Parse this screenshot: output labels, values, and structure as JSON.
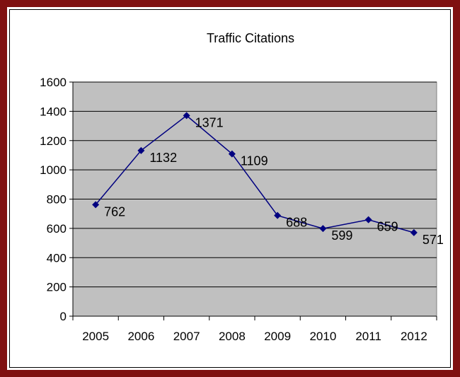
{
  "chart_data": {
    "type": "line",
    "title": "Traffic Citations",
    "categories": [
      "2005",
      "2006",
      "2007",
      "2008",
      "2009",
      "2010",
      "2011",
      "2012"
    ],
    "series": [
      {
        "values": [
          762,
          1132,
          1371,
          1109,
          688,
          599,
          659,
          571
        ]
      }
    ],
    "ylim": [
      0,
      1600
    ],
    "yticks": [
      0,
      200,
      400,
      600,
      800,
      1000,
      1200,
      1400,
      1600
    ],
    "grid": true,
    "legend": "none",
    "data_labels": [
      "762",
      "1132",
      "1371",
      "1109",
      "688",
      "599",
      "659",
      "571"
    ]
  },
  "colors": {
    "frame": "#7f1010",
    "plot_background": "#c0c0c0",
    "series_line": "#000080",
    "gridline": "#000000"
  }
}
